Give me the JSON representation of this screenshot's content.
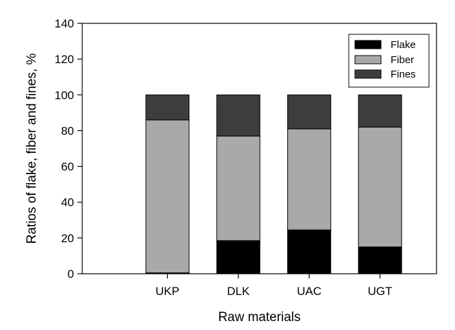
{
  "chart_data": {
    "type": "bar",
    "stacked": true,
    "categories": [
      "UKP",
      "DLK",
      "UAC",
      "UGT"
    ],
    "series": [
      {
        "name": "Flake",
        "values": [
          0.5,
          18.5,
          24.5,
          15
        ],
        "color": "#000000"
      },
      {
        "name": "Fiber",
        "values": [
          85.5,
          58.5,
          56.5,
          67
        ],
        "color": "#a9a9a9"
      },
      {
        "name": "Fines",
        "values": [
          14,
          23,
          19,
          18
        ],
        "color": "#3d3d3d"
      }
    ],
    "title": "",
    "xlabel": "Raw materials",
    "ylabel": "Ratios of flake, fiber and fines, %",
    "ylim": [
      0,
      140
    ],
    "yticks": [
      "0",
      "20",
      "40",
      "60",
      "80",
      "100",
      "120",
      "140"
    ],
    "grid": false,
    "legend_position": "top-right"
  }
}
